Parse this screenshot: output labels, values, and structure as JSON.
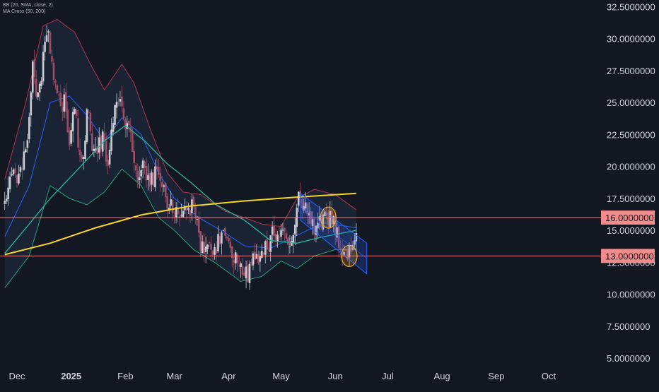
{
  "indicators": [
    "BB (20, SMA, close, 2)",
    "MA Cross (50, 200)"
  ],
  "colors": {
    "background": "#131722",
    "axis_text": "#d1d4dc",
    "up_candle": "#c9cdd6",
    "down_candle": "#a04d67",
    "bb_upper": "#b2334e",
    "bb_lower": "#26a27e",
    "bb_basis": "#2962ff",
    "bb_fill": "#1b2636",
    "ma50": "#26b89a",
    "ma200": "#f5d623",
    "level_line": "#f07d7d",
    "level_label_bg": "#f28b8b",
    "channel": "#2962ff",
    "circle": "#f5a623"
  },
  "chart_data": {
    "type": "candlestick",
    "x_labels": [
      "Dec",
      "2025",
      "Feb",
      "Mar",
      "Apr",
      "May",
      "Jun",
      "Jul",
      "Aug",
      "Sep",
      "Oct"
    ],
    "x_dates": [
      "2024-12-01",
      "2025-01-01",
      "2025-02-01",
      "2025-03-01",
      "2025-04-01",
      "2025-05-01",
      "2025-06-01",
      "2025-07-01",
      "2025-08-01",
      "2025-09-01",
      "2025-10-01"
    ],
    "y_ticks": [
      "32.5000000",
      "30.0000000",
      "27.5000000",
      "25.0000000",
      "22.5000000",
      "20.0000000",
      "17.5000000",
      "15.0000000",
      "12.5000000",
      "10.0000000",
      "7.5000000",
      "5.0000000"
    ],
    "ylim": [
      4.4,
      32.8
    ],
    "price_path": [
      [
        "2024-11-24",
        17.0
      ],
      [
        "2024-11-28",
        19.3
      ],
      [
        "2024-12-02",
        19.5
      ],
      [
        "2024-12-06",
        21.0
      ],
      [
        "2024-12-10",
        27.5
      ],
      [
        "2024-12-13",
        25.4
      ],
      [
        "2024-12-16",
        28.5
      ],
      [
        "2024-12-19",
        30.5
      ],
      [
        "2024-12-21",
        28.4
      ],
      [
        "2024-12-24",
        25.2
      ],
      [
        "2024-12-28",
        25.0
      ],
      [
        "2024-12-31",
        22.0
      ],
      [
        "2025-01-03",
        24.4
      ],
      [
        "2025-01-07",
        19.8
      ],
      [
        "2025-01-10",
        24.2
      ],
      [
        "2025-01-13",
        22.0
      ],
      [
        "2025-01-16",
        21.0
      ],
      [
        "2025-01-19",
        22.6
      ],
      [
        "2025-01-22",
        20.0
      ],
      [
        "2025-01-26",
        24.2
      ],
      [
        "2025-01-29",
        25.5
      ],
      [
        "2025-02-01",
        23.5
      ],
      [
        "2025-02-05",
        21.5
      ],
      [
        "2025-02-08",
        19.4
      ],
      [
        "2025-02-12",
        20.0
      ],
      [
        "2025-02-15",
        18.7
      ],
      [
        "2025-02-19",
        19.4
      ],
      [
        "2025-02-22",
        18.2
      ],
      [
        "2025-02-25",
        17.2
      ],
      [
        "2025-03-01",
        16.5
      ],
      [
        "2025-03-04",
        15.2
      ],
      [
        "2025-03-06",
        16.6
      ],
      [
        "2025-03-09",
        17.0
      ],
      [
        "2025-03-12",
        16.5
      ],
      [
        "2025-03-15",
        14.6
      ],
      [
        "2025-03-18",
        13.2
      ],
      [
        "2025-03-21",
        14.1
      ],
      [
        "2025-03-25",
        13.6
      ],
      [
        "2025-03-28",
        15.0
      ],
      [
        "2025-04-01",
        14.4
      ],
      [
        "2025-04-04",
        13.0
      ],
      [
        "2025-04-08",
        11.8
      ],
      [
        "2025-04-12",
        11.4
      ],
      [
        "2025-04-15",
        12.4
      ],
      [
        "2025-04-18",
        13.1
      ],
      [
        "2025-04-22",
        13.6
      ],
      [
        "2025-04-26",
        14.6
      ],
      [
        "2025-04-30",
        15.0
      ],
      [
        "2025-05-03",
        14.4
      ],
      [
        "2025-05-07",
        14.2
      ],
      [
        "2025-05-09",
        15.2
      ],
      [
        "2025-05-11",
        17.5
      ],
      [
        "2025-05-14",
        17.0
      ],
      [
        "2025-05-17",
        16.0
      ],
      [
        "2025-05-20",
        15.5
      ],
      [
        "2025-05-23",
        15.9
      ],
      [
        "2025-05-26",
        15.7
      ],
      [
        "2025-05-29",
        16.2
      ],
      [
        "2025-06-01",
        15.2
      ],
      [
        "2025-06-04",
        14.0
      ],
      [
        "2025-06-07",
        13.5
      ],
      [
        "2025-06-09",
        13.2
      ],
      [
        "2025-06-11",
        14.5
      ],
      [
        "2025-06-13",
        15.3
      ]
    ],
    "ma200_path": [
      [
        "2024-11-24",
        13.1
      ],
      [
        "2024-12-20",
        14.0
      ],
      [
        "2025-01-15",
        15.2
      ],
      [
        "2025-02-10",
        16.2
      ],
      [
        "2025-03-10",
        16.9
      ],
      [
        "2025-04-10",
        17.3
      ],
      [
        "2025-05-10",
        17.6
      ],
      [
        "2025-06-13",
        17.9
      ]
    ],
    "ma50_path": [
      [
        "2024-11-24",
        13.2
      ],
      [
        "2024-12-05",
        15.0
      ],
      [
        "2024-12-20",
        17.5
      ],
      [
        "2025-01-05",
        19.8
      ],
      [
        "2025-01-20",
        22.0
      ],
      [
        "2025-02-01",
        23.2
      ],
      [
        "2025-02-12",
        22.0
      ],
      [
        "2025-02-25",
        20.2
      ],
      [
        "2025-03-10",
        18.8
      ],
      [
        "2025-03-25",
        17.0
      ],
      [
        "2025-04-10",
        15.8
      ],
      [
        "2025-04-25",
        14.2
      ],
      [
        "2025-05-10",
        14.0
      ],
      [
        "2025-05-25",
        14.5
      ],
      [
        "2025-06-13",
        15.0
      ]
    ],
    "bb_upper_path": [
      [
        "2024-11-24",
        19.0
      ],
      [
        "2024-12-06",
        25.0
      ],
      [
        "2024-12-16",
        31.0
      ],
      [
        "2024-12-24",
        31.5
      ],
      [
        "2025-01-03",
        30.5
      ],
      [
        "2025-01-12",
        28.0
      ],
      [
        "2025-01-20",
        26.0
      ],
      [
        "2025-01-30",
        28.0
      ],
      [
        "2025-02-06",
        26.5
      ],
      [
        "2025-02-15",
        23.0
      ],
      [
        "2025-02-25",
        19.5
      ],
      [
        "2025-03-06",
        18.0
      ],
      [
        "2025-03-16",
        17.8
      ],
      [
        "2025-03-30",
        16.5
      ],
      [
        "2025-04-10",
        16.0
      ],
      [
        "2025-04-20",
        15.5
      ],
      [
        "2025-05-01",
        15.3
      ],
      [
        "2025-05-10",
        17.5
      ],
      [
        "2025-05-20",
        18.2
      ],
      [
        "2025-06-01",
        17.8
      ],
      [
        "2025-06-13",
        16.6
      ]
    ],
    "bb_basis_path": [
      [
        "2024-11-24",
        14.5
      ],
      [
        "2024-12-08",
        18.5
      ],
      [
        "2024-12-20",
        25.0
      ],
      [
        "2024-12-31",
        25.5
      ],
      [
        "2025-01-10",
        24.0
      ],
      [
        "2025-01-20",
        22.0
      ],
      [
        "2025-01-30",
        23.8
      ],
      [
        "2025-02-10",
        22.5
      ],
      [
        "2025-02-20",
        19.5
      ],
      [
        "2025-03-01",
        17.5
      ],
      [
        "2025-03-15",
        16.0
      ],
      [
        "2025-03-30",
        14.8
      ],
      [
        "2025-04-10",
        13.8
      ],
      [
        "2025-04-25",
        13.6
      ],
      [
        "2025-05-10",
        14.6
      ],
      [
        "2025-05-25",
        15.6
      ],
      [
        "2025-06-13",
        15.2
      ]
    ],
    "bb_lower_path": [
      [
        "2024-11-24",
        10.5
      ],
      [
        "2024-12-08",
        13.0
      ],
      [
        "2024-12-20",
        18.5
      ],
      [
        "2024-12-31",
        17.5
      ],
      [
        "2025-01-10",
        17.0
      ],
      [
        "2025-01-20",
        18.0
      ],
      [
        "2025-01-30",
        19.8
      ],
      [
        "2025-02-10",
        18.5
      ],
      [
        "2025-02-20",
        16.0
      ],
      [
        "2025-03-01",
        15.0
      ],
      [
        "2025-03-12",
        13.5
      ],
      [
        "2025-03-25",
        12.4
      ],
      [
        "2025-04-08",
        11.0
      ],
      [
        "2025-04-20",
        11.4
      ],
      [
        "2025-05-01",
        12.6
      ],
      [
        "2025-05-10",
        12.0
      ],
      [
        "2025-05-20",
        13.0
      ],
      [
        "2025-06-01",
        13.5
      ],
      [
        "2025-06-13",
        13.5
      ]
    ],
    "horizontal_levels": [
      {
        "value": 16.0,
        "label": "16.0000000"
      },
      {
        "value": 13.0,
        "label": "13.0000000"
      }
    ],
    "channel": {
      "start": "2025-05-12",
      "end": "2025-06-19",
      "upper": [
        17.9,
        14.0
      ],
      "lower": [
        15.8,
        11.6
      ]
    },
    "highlights": [
      {
        "date": "2025-05-28",
        "value": 16.0
      },
      {
        "date": "2025-06-09",
        "value": 13.0
      }
    ]
  }
}
